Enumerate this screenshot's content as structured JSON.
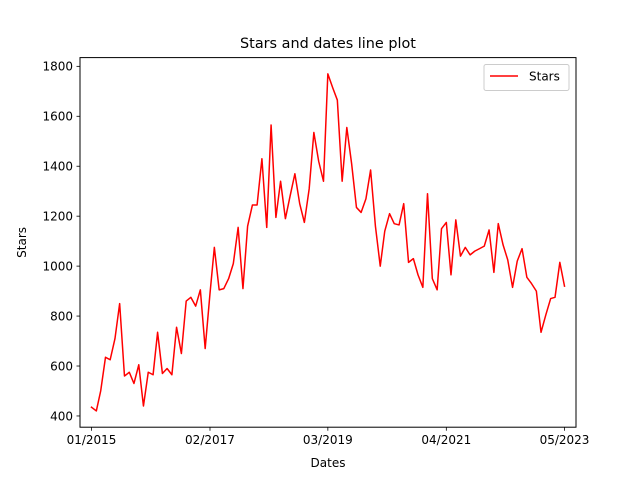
{
  "chart_data": {
    "type": "line",
    "title": "Stars and dates line plot",
    "xlabel": "Dates",
    "ylabel": "Stars",
    "x_ticks": [
      "01/2015",
      "02/2017",
      "03/2019",
      "04/2021",
      "05/2023"
    ],
    "y_ticks": [
      400,
      600,
      800,
      1000,
      1200,
      1400,
      1600,
      1800
    ],
    "ylim": [
      355,
      1835
    ],
    "xlim": [
      "2014-10-19",
      "2023-07-14"
    ],
    "grid": false,
    "legend": {
      "position": "upper right"
    },
    "series": [
      {
        "name": "Stars",
        "color": "#ff0000",
        "x": [
          "2015-01",
          "2015-02",
          "2015-03",
          "2015-04",
          "2015-05",
          "2015-06",
          "2015-07",
          "2015-08",
          "2015-09",
          "2015-10",
          "2015-11",
          "2015-12",
          "2016-01",
          "2016-02",
          "2016-03",
          "2016-04",
          "2016-05",
          "2016-06",
          "2016-07",
          "2016-08",
          "2016-09",
          "2016-10",
          "2016-11",
          "2016-12",
          "2017-01",
          "2017-02",
          "2017-03",
          "2017-04",
          "2017-05",
          "2017-06",
          "2017-07",
          "2017-08",
          "2017-09",
          "2017-10",
          "2017-11",
          "2017-12",
          "2018-01",
          "2018-02",
          "2018-03",
          "2018-04",
          "2018-05",
          "2018-06",
          "2018-07",
          "2018-08",
          "2018-09",
          "2018-10",
          "2018-11",
          "2018-12",
          "2019-01",
          "2019-02",
          "2019-03",
          "2019-04",
          "2019-05",
          "2019-06",
          "2019-07",
          "2019-08",
          "2019-09",
          "2019-10",
          "2019-11",
          "2019-12",
          "2020-01",
          "2020-02",
          "2020-03",
          "2020-04",
          "2020-05",
          "2020-06",
          "2020-07",
          "2020-08",
          "2020-09",
          "2020-10",
          "2020-11",
          "2020-12",
          "2021-01",
          "2021-02",
          "2021-03",
          "2021-04",
          "2021-05",
          "2021-06",
          "2021-07",
          "2021-08",
          "2021-09",
          "2021-10",
          "2021-11",
          "2021-12",
          "2022-01",
          "2022-02",
          "2022-03",
          "2022-04",
          "2022-05",
          "2022-06",
          "2022-07",
          "2022-08",
          "2022-09",
          "2022-10",
          "2022-11",
          "2022-12",
          "2023-01",
          "2023-02",
          "2023-03",
          "2023-04",
          "2023-05"
        ],
        "values": [
          435,
          420,
          500,
          635,
          625,
          710,
          850,
          560,
          575,
          530,
          605,
          440,
          575,
          565,
          735,
          570,
          590,
          565,
          755,
          650,
          860,
          875,
          840,
          905,
          670,
          890,
          1075,
          905,
          910,
          950,
          1010,
          1155,
          910,
          1160,
          1245,
          1245,
          1430,
          1155,
          1565,
          1195,
          1340,
          1190,
          1280,
          1370,
          1250,
          1175,
          1310,
          1535,
          1420,
          1340,
          1770,
          1715,
          1665,
          1340,
          1555,
          1410,
          1235,
          1215,
          1270,
          1385,
          1160,
          1000,
          1140,
          1210,
          1170,
          1165,
          1250,
          1015,
          1030,
          965,
          915,
          1290,
          950,
          905,
          1150,
          1175,
          965,
          1185,
          1040,
          1075,
          1045,
          1060,
          1070,
          1080,
          1145,
          975,
          1170,
          1085,
          1025,
          915,
          1020,
          1070,
          955,
          930,
          900,
          735,
          805,
          870,
          875,
          1015,
          920
        ]
      }
    ]
  }
}
